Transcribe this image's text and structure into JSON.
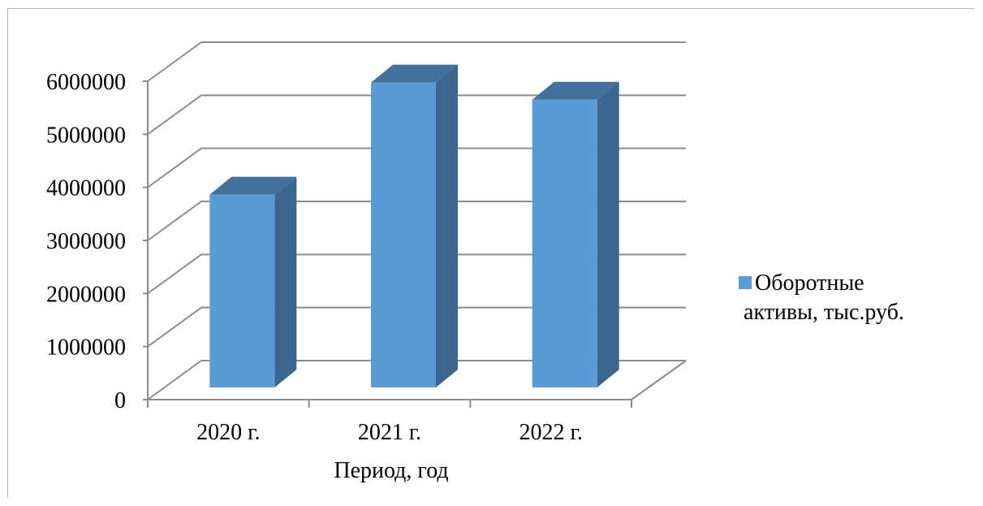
{
  "chart_data": {
    "type": "bar",
    "style": "3d-column",
    "title": "",
    "xlabel": "Период, год",
    "ylabel": "",
    "categories": [
      "2020 г.",
      "2021 г.",
      "2022 г."
    ],
    "series": [
      {
        "name": "Оборотные активы, тыс.руб.",
        "values": [
          3700000,
          5850000,
          5520000
        ]
      }
    ],
    "ylim": [
      0,
      6000000
    ],
    "yticks": [
      0,
      1000000,
      2000000,
      3000000,
      4000000,
      5000000,
      6000000
    ],
    "ytick_labels": [
      "0",
      "1000000",
      "2000000",
      "3000000",
      "4000000",
      "5000000",
      "6000000"
    ],
    "grid": true,
    "legend": "right",
    "colors": {
      "bar_front": "#5b9bd5",
      "bar_side": "#3a668f",
      "bar_top": "#41719c",
      "grid": "#8c8c8c"
    }
  }
}
